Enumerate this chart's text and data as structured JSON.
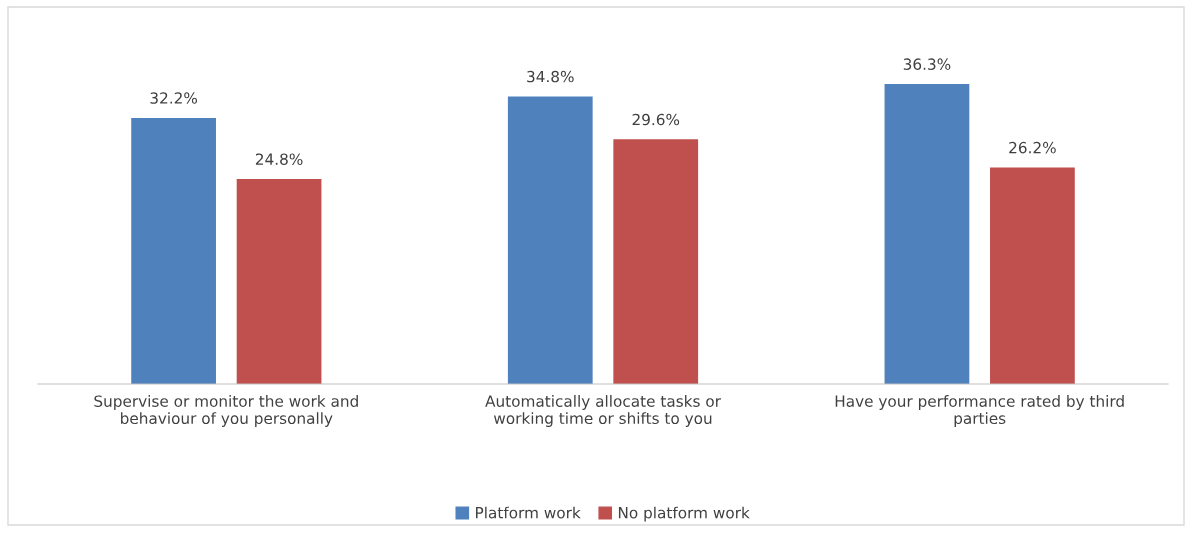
{
  "chart_data": {
    "type": "bar",
    "categories": [
      "Supervise or monitor the work and behaviour of you personally",
      "Automatically allocate tasks or working time or shifts to you",
      "Have your performance rated by third parties"
    ],
    "series": [
      {
        "name": "Platform work",
        "color": "#4f81bd",
        "values": [
          32.2,
          34.8,
          36.3
        ],
        "value_labels": [
          "32.2%",
          "34.8%",
          "36.3%"
        ]
      },
      {
        "name": "No platform work",
        "color": "#c0504d",
        "values": [
          24.8,
          29.6,
          26.2
        ],
        "value_labels": [
          "24.8%",
          "29.6%",
          "26.2%"
        ]
      }
    ],
    "legend": "bottom"
  }
}
